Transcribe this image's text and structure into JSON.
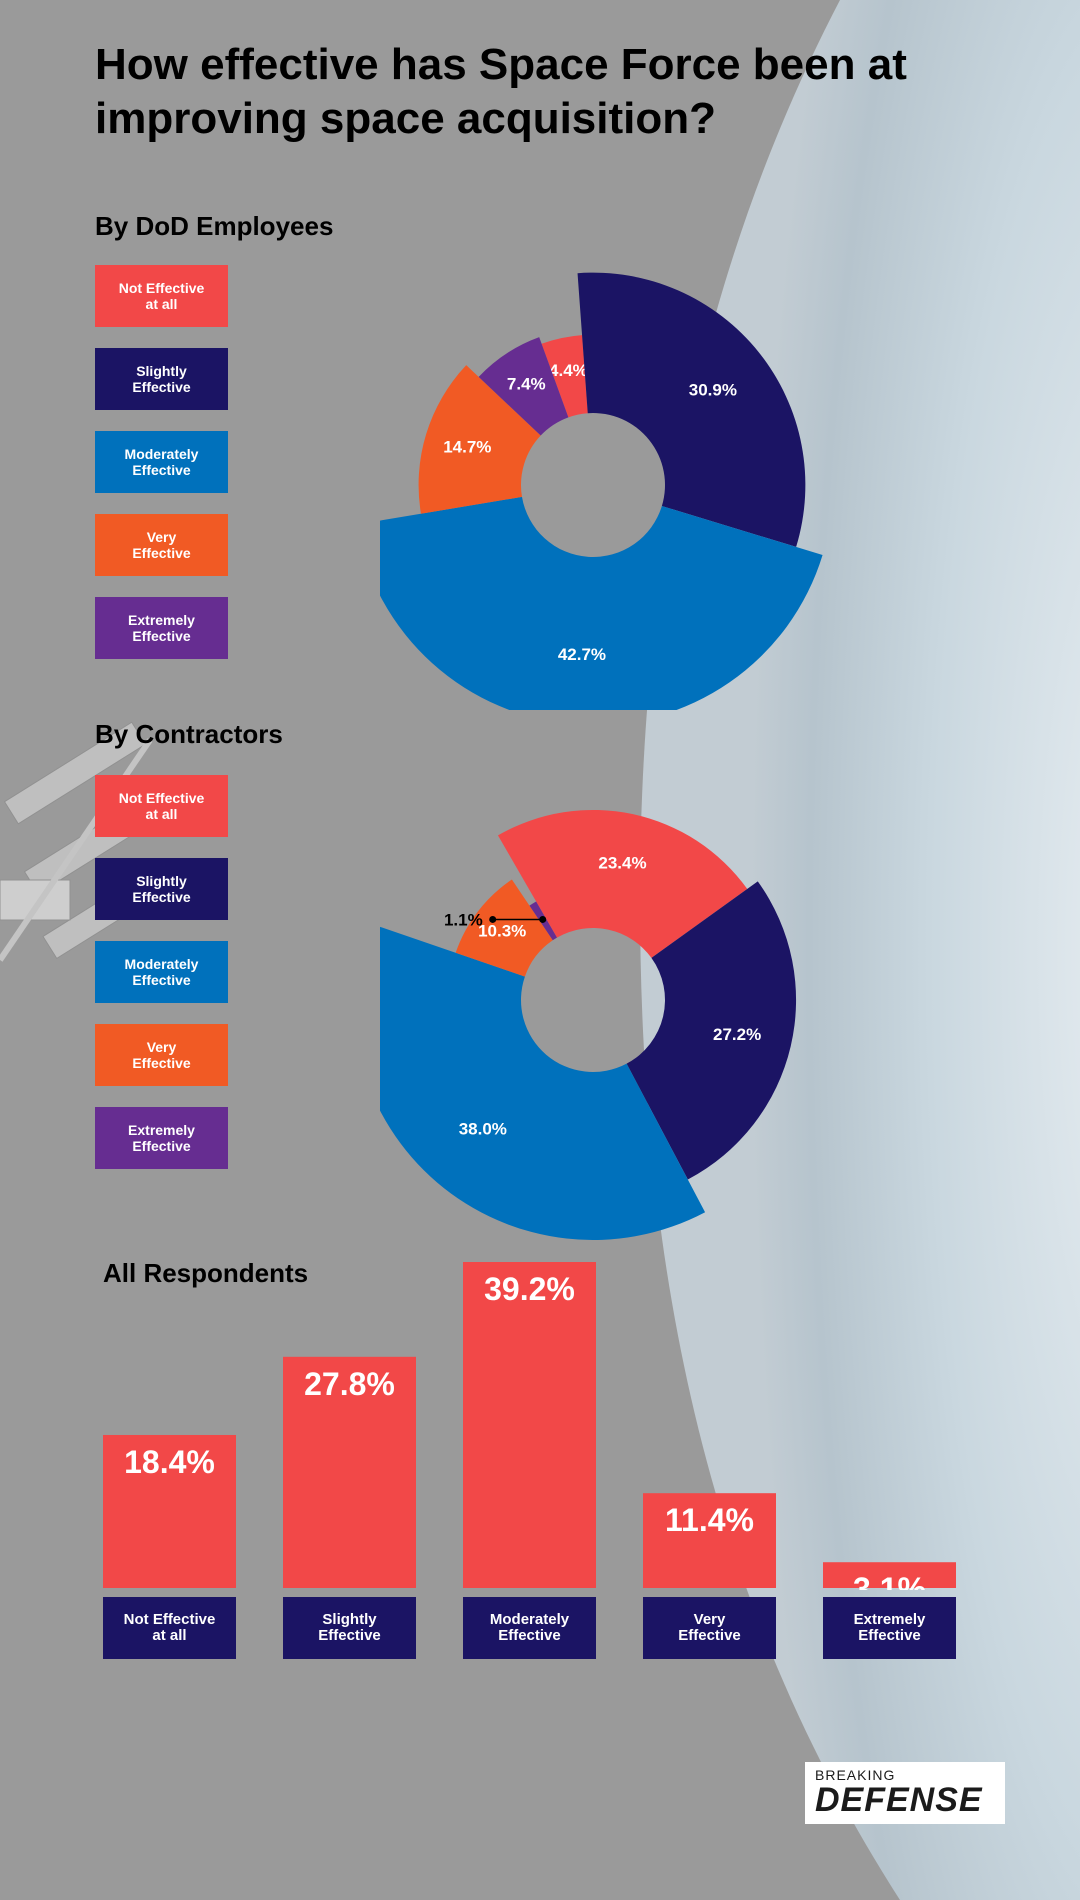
{
  "title": "How effective has Space Force been at improving space acquisition?",
  "colors": {
    "not_effective": "#f24848",
    "slightly": "#1b1464",
    "moderately": "#0071bc",
    "very": "#f15a24",
    "extremely": "#662d91",
    "text_dark": "#000000",
    "text_light": "#ffffff"
  },
  "legend": [
    {
      "label": "Not Effective\nat all",
      "color": "#f24848"
    },
    {
      "label": "Slightly\nEffective",
      "color": "#1b1464"
    },
    {
      "label": "Moderately\nEffective",
      "color": "#0071bc"
    },
    {
      "label": "Very\nEffective",
      "color": "#f15a24"
    },
    {
      "label": "Extremely\nEffective",
      "color": "#662d91"
    }
  ],
  "logo": {
    "top": "BREAKING",
    "bottom": "DEFENSE"
  },
  "chart_data": [
    {
      "type": "pie",
      "title": "By DoD Employees",
      "variant": "polar-area donut",
      "categories": [
        "Not Effective at all",
        "Slightly Effective",
        "Moderately Effective",
        "Very Effective",
        "Extremely Effective"
      ],
      "values": [
        4.4,
        30.9,
        42.7,
        14.7,
        7.4
      ],
      "labels": [
        "4.4%",
        "30.9%",
        "42.7%",
        "14.7%",
        "7.4%"
      ]
    },
    {
      "type": "pie",
      "title": "By Contractors",
      "variant": "polar-area donut",
      "categories": [
        "Not Effective at all",
        "Slightly Effective",
        "Moderately Effective",
        "Very Effective",
        "Extremely Effective"
      ],
      "values": [
        23.4,
        27.2,
        38.0,
        10.3,
        1.1
      ],
      "labels": [
        "23.4%",
        "27.2%",
        "38.0%",
        "10.3%",
        "1.1%"
      ]
    },
    {
      "type": "bar",
      "title": "All Respondents",
      "categories": [
        "Not Effective\nat all",
        "Slightly\nEffective",
        "Moderately\nEffective",
        "Very\nEffective",
        "Extremely\nEffective"
      ],
      "values": [
        18.4,
        27.8,
        39.2,
        11.4,
        3.1
      ],
      "labels": [
        "18.4%",
        "27.8%",
        "39.2%",
        "11.4%",
        "3.1%"
      ]
    }
  ]
}
